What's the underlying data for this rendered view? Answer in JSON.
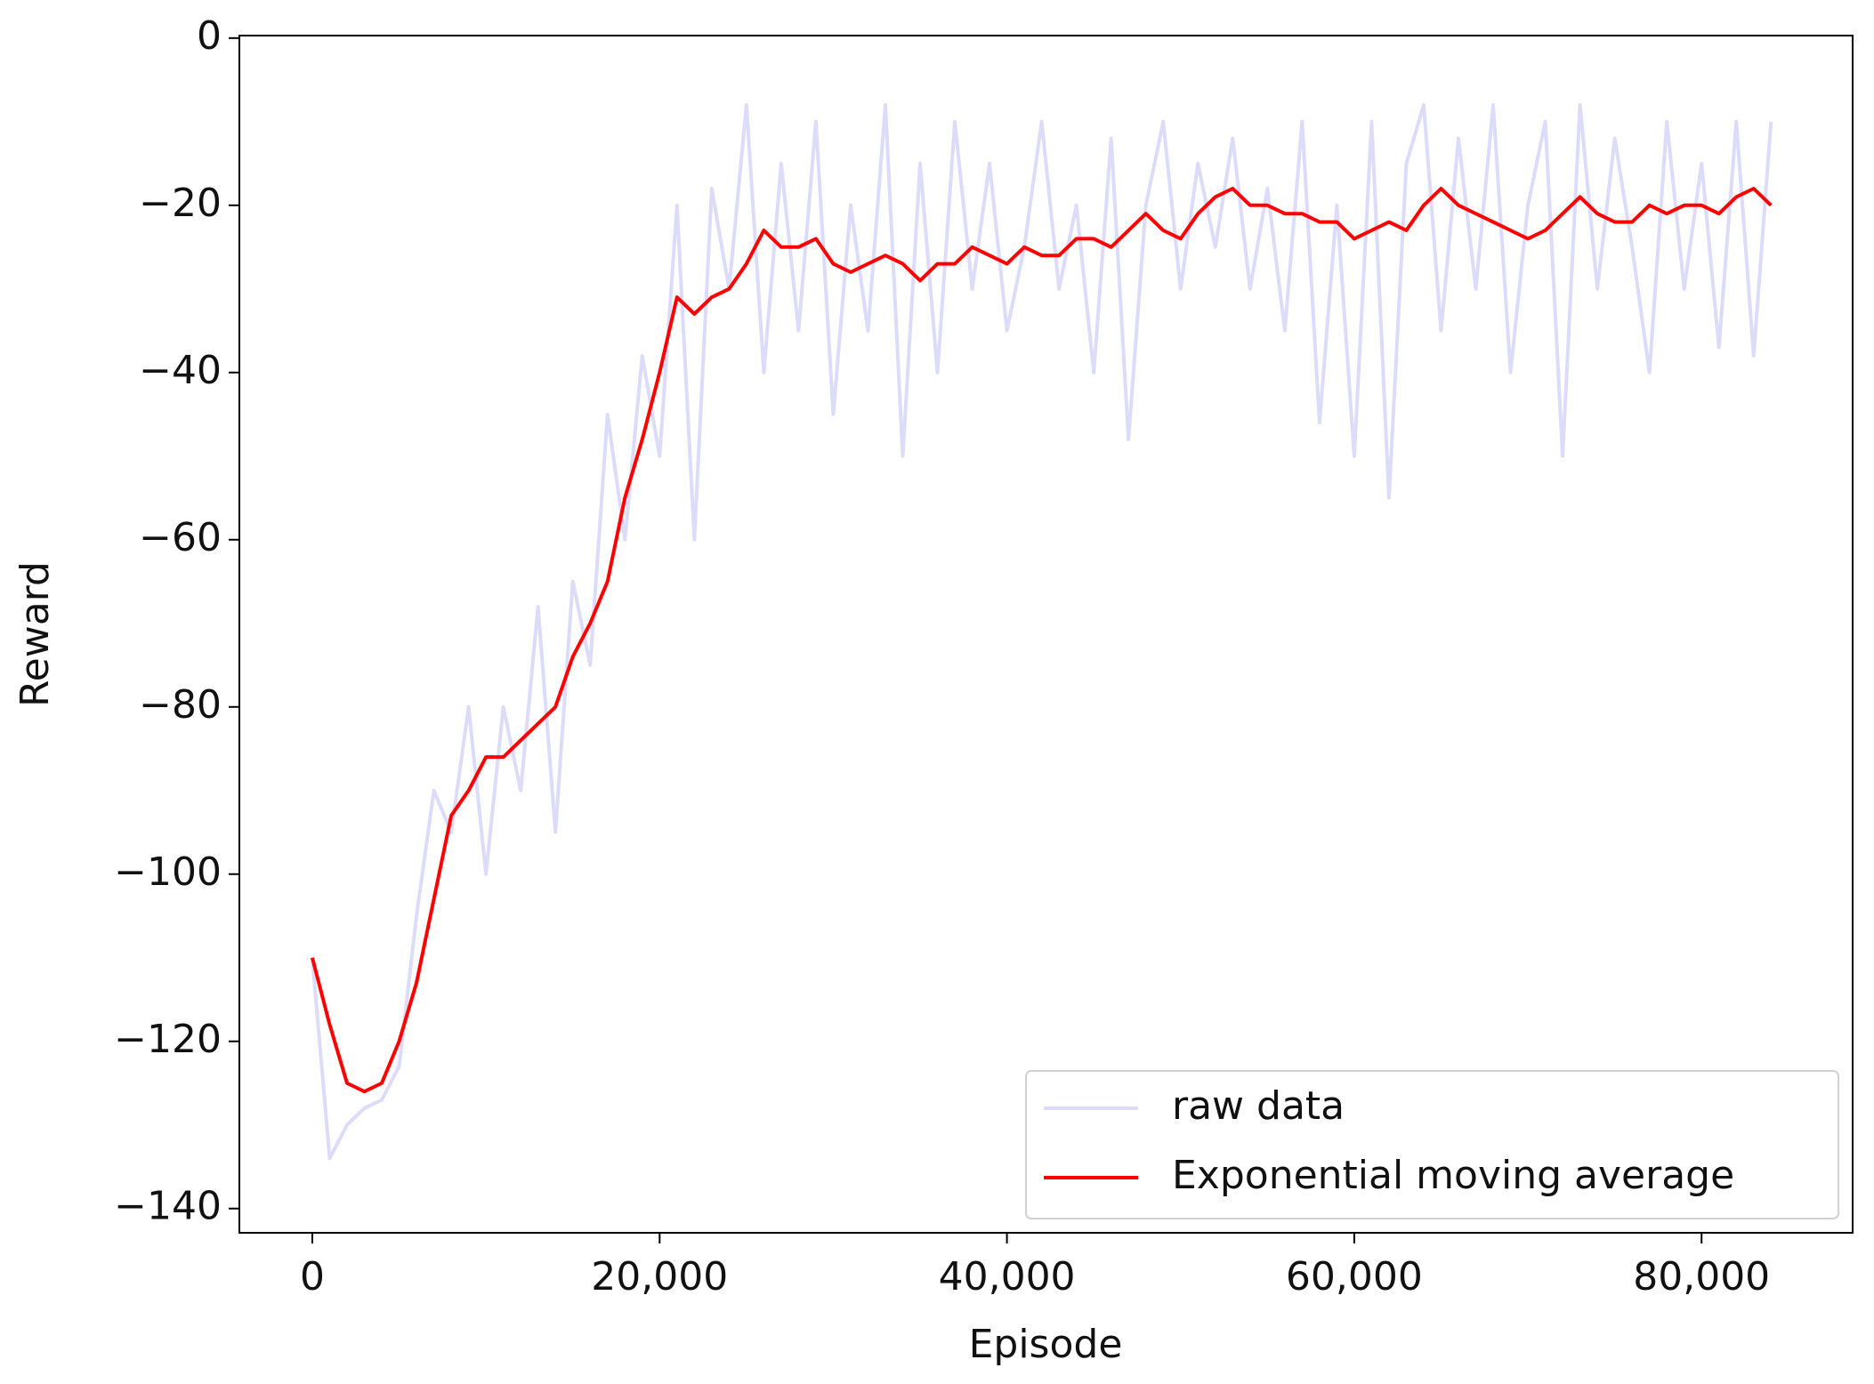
{
  "chart_data": {
    "type": "line",
    "x_label": "Episode",
    "y_label": "Reward",
    "x": [
      0,
      1000,
      2000,
      3000,
      4000,
      5000,
      6000,
      7000,
      8000,
      9000,
      10000,
      11000,
      12000,
      13000,
      14000,
      15000,
      16000,
      17000,
      18000,
      19000,
      20000,
      21000,
      22000,
      23000,
      24000,
      25000,
      26000,
      27000,
      28000,
      29000,
      30000,
      31000,
      32000,
      33000,
      34000,
      35000,
      36000,
      37000,
      38000,
      39000,
      40000,
      41000,
      42000,
      43000,
      44000,
      45000,
      46000,
      47000,
      48000,
      49000,
      50000,
      51000,
      52000,
      53000,
      54000,
      55000,
      56000,
      57000,
      58000,
      59000,
      60000,
      61000,
      62000,
      63000,
      64000,
      65000,
      66000,
      67000,
      68000,
      69000,
      70000,
      71000,
      72000,
      73000,
      74000,
      75000,
      76000,
      77000,
      78000,
      79000,
      80000,
      81000,
      82000,
      83000,
      84000
    ],
    "series": [
      {
        "name": "raw data",
        "color": "#dcdcfa",
        "values": [
          -110,
          -134,
          -130,
          -128,
          -127,
          -123,
          -105,
          -90,
          -95,
          -80,
          -100,
          -80,
          -90,
          -68,
          -95,
          -65,
          -75,
          -45,
          -60,
          -38,
          -50,
          -20,
          -60,
          -18,
          -30,
          -8,
          -40,
          -15,
          -35,
          -10,
          -45,
          -20,
          -35,
          -8,
          -50,
          -15,
          -40,
          -10,
          -30,
          -15,
          -35,
          -25,
          -10,
          -30,
          -20,
          -40,
          -12,
          -48,
          -20,
          -10,
          -30,
          -15,
          -25,
          -12,
          -30,
          -18,
          -35,
          -10,
          -46,
          -20,
          -50,
          -10,
          -55,
          -15,
          -8,
          -35,
          -12,
          -30,
          -8,
          -40,
          -20,
          -10,
          -50,
          -8,
          -30,
          -12,
          -25,
          -40,
          -10,
          -30,
          -15,
          -37,
          -10,
          -38,
          -10
        ]
      },
      {
        "name": "Exponential moving average",
        "color": "#ff0000",
        "values": [
          -110,
          -118,
          -125,
          -126,
          -125,
          -120,
          -113,
          -103,
          -93,
          -90,
          -86,
          -86,
          -84,
          -82,
          -80,
          -74,
          -70,
          -65,
          -55,
          -48,
          -40,
          -31,
          -33,
          -31,
          -30,
          -27,
          -23,
          -25,
          -25,
          -24,
          -27,
          -28,
          -27,
          -26,
          -27,
          -29,
          -27,
          -27,
          -25,
          -26,
          -27,
          -25,
          -26,
          -26,
          -24,
          -24,
          -25,
          -23,
          -21,
          -23,
          -24,
          -21,
          -19,
          -18,
          -20,
          -20,
          -21,
          -21,
          -22,
          -22,
          -24,
          -23,
          -22,
          -23,
          -20,
          -18,
          -20,
          -21,
          -22,
          -23,
          -24,
          -23,
          -21,
          -19,
          -21,
          -22,
          -22,
          -20,
          -21,
          -20,
          -20,
          -21,
          -19,
          -18,
          -20
        ]
      }
    ],
    "xlim": [
      -4200,
      88700
    ],
    "ylim": [
      -142.9,
      0.3
    ],
    "xticks": [
      0,
      {
        "value": 20000,
        "label": "20,000"
      },
      {
        "value": 40000,
        "label": "40,000"
      },
      {
        "value": 60000,
        "label": "60,000"
      },
      {
        "value": 80000,
        "label": "80,000"
      }
    ],
    "yticks": [
      0,
      {
        "value": -20,
        "label": "−20"
      },
      {
        "value": -40,
        "label": "−40"
      },
      {
        "value": -60,
        "label": "−60"
      },
      {
        "value": -80,
        "label": "−80"
      },
      {
        "value": -100,
        "label": "−100"
      },
      {
        "value": -120,
        "label": "−120"
      },
      {
        "value": -140,
        "label": "−140"
      }
    ],
    "legend_loc": "lower right"
  }
}
